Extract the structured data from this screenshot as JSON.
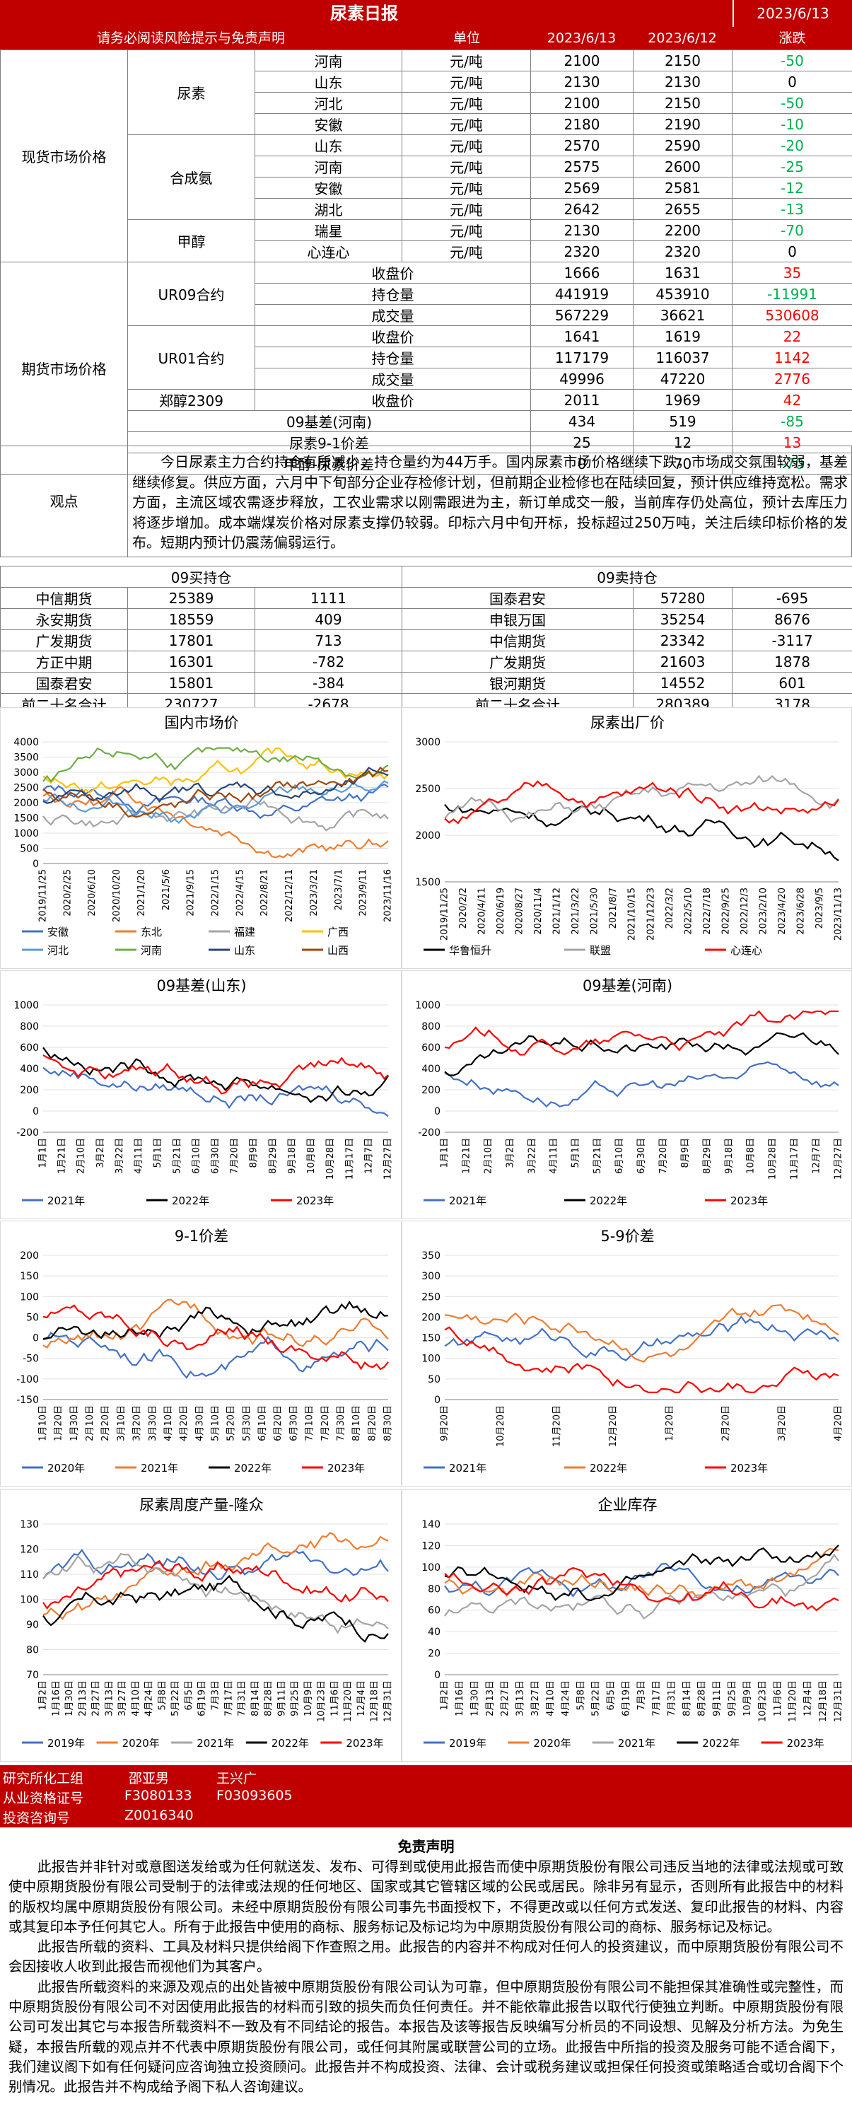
{
  "header": {
    "title": "尿素日报",
    "date": "2023/6/13"
  },
  "subheader": {
    "notice": "请务必阅读风险提示与免责声明",
    "unit": "单位",
    "col1": "2023/6/13",
    "col2": "2023/6/12",
    "col3": "涨跌"
  },
  "spot": {
    "section": "现货市场价格",
    "groups": [
      {
        "name": "尿素",
        "rows": [
          [
            "河南",
            "元/吨",
            "2100",
            "2150",
            "-50"
          ],
          [
            "山东",
            "元/吨",
            "2130",
            "2130",
            "0"
          ],
          [
            "河北",
            "元/吨",
            "2100",
            "2150",
            "-50"
          ],
          [
            "安徽",
            "元/吨",
            "2180",
            "2190",
            "-10"
          ]
        ]
      },
      {
        "name": "合成氨",
        "rows": [
          [
            "山东",
            "元/吨",
            "2570",
            "2590",
            "-20"
          ],
          [
            "河南",
            "元/吨",
            "2575",
            "2600",
            "-25"
          ],
          [
            "安徽",
            "元/吨",
            "2569",
            "2581",
            "-12"
          ],
          [
            "湖北",
            "元/吨",
            "2642",
            "2655",
            "-13"
          ]
        ]
      },
      {
        "name": "甲醇",
        "rows": [
          [
            "瑞星",
            "元/吨",
            "2130",
            "2200",
            "-70"
          ],
          [
            "心连心",
            "元/吨",
            "2320",
            "2320",
            "0"
          ]
        ]
      }
    ]
  },
  "futures": {
    "section": "期货市场价格",
    "groups": [
      {
        "name": "UR09合约",
        "rows": [
          [
            "收盘价",
            "1666",
            "1631",
            "35"
          ],
          [
            "持仓量",
            "441919",
            "453910",
            "-11991"
          ],
          [
            "成交量",
            "567229",
            "36621",
            "530608"
          ]
        ]
      },
      {
        "name": "UR01合约",
        "rows": [
          [
            "收盘价",
            "1641",
            "1619",
            "22"
          ],
          [
            "持仓量",
            "117179",
            "116037",
            "1142"
          ],
          [
            "成交量",
            "49996",
            "47220",
            "2776"
          ]
        ]
      },
      {
        "name": "郑醇2309",
        "rows": [
          [
            "收盘价",
            "2011",
            "1969",
            "42"
          ]
        ]
      }
    ],
    "basis": [
      [
        "09基差(河南)",
        "434",
        "519",
        "-85"
      ],
      [
        "尿素9-1价差",
        "25",
        "12",
        "13"
      ],
      [
        "甲醇-尿素价差",
        "0",
        "70",
        "-70"
      ]
    ]
  },
  "view": {
    "label": "观点",
    "text": "今日尿素主力合约持仓有所减少，持仓量约为44万手。国内尿素市场价格继续下跌，市场成交氛围较弱，基差继续修复。供应方面，六月中下旬部分企业存检修计划，但前期企业检修也在陆续回复，预计供应维持宽松。需求方面，主流区域农需逐步释放，工农业需求以刚需跟进为主，新订单成交一般，当前库存仍处高位，预计去库压力将逐步增加。成本端煤炭价格对尿素支撑仍较弱。印标六月中旬开标，投标超过250万吨，关注后续印标价格的发布。短期内预计仍震荡偏弱运行。"
  },
  "positions": {
    "buy_title": "09买持仓",
    "sell_title": "09卖持仓",
    "rows": [
      [
        "中信期货",
        "25389",
        "1111",
        "国泰君安",
        "57280",
        "-695"
      ],
      [
        "永安期货",
        "18559",
        "409",
        "申银万国",
        "35254",
        "8676"
      ],
      [
        "广发期货",
        "17801",
        "713",
        "中信期货",
        "23342",
        "-3117"
      ],
      [
        "方正中期",
        "16301",
        "-782",
        "广发期货",
        "21603",
        "1878"
      ],
      [
        "国泰君安",
        "15801",
        "-384",
        "银河期货",
        "14552",
        "601"
      ],
      [
        "前二十名合计",
        "230727",
        "-2678",
        "前二十名合计",
        "280389",
        "3178"
      ]
    ]
  },
  "charts": [
    {
      "title": "国内市场价",
      "type": "line",
      "ylim": [
        0,
        4000
      ],
      "yticks": [
        "0",
        "500",
        "1000",
        "1500",
        "2000",
        "2500",
        "3000",
        "3500",
        "4000"
      ],
      "xticks": [
        "2019/11/25",
        "2020/2/25",
        "2020/6/10",
        "2020/10/20",
        "2021/1/20",
        "2021/5/6",
        "2021/9/15",
        "2022/1/15",
        "2022/4/15",
        "2022/8/21",
        "2022/12/11",
        "2023/3/21",
        "2023/7/1",
        "2023/9/11",
        "2023/11/16"
      ],
      "legend": [
        "安徽",
        "东北",
        "福建",
        "广西",
        "河北",
        "河南",
        "山东",
        "山西"
      ],
      "colors": [
        "#4472c4",
        "#ed7d31",
        "#a5a5a5",
        "#ffc000",
        "#5b9bd5",
        "#70ad47",
        "#264478",
        "#9e480e"
      ]
    },
    {
      "title": "尿素出厂价",
      "type": "line",
      "ylim": [
        1500,
        3000
      ],
      "yticks": [
        "1500",
        "2000",
        "2500",
        "3000"
      ],
      "xticks": [
        "2019/11/25",
        "2020/2/2",
        "2020/4/11",
        "2020/6/19",
        "2020/8/27",
        "2020/11/4",
        "2021/1/12",
        "2021/3/22",
        "2021/5/30",
        "2021/8/7",
        "2021/10/15",
        "2021/12/23",
        "2022/3/2",
        "2022/5/10",
        "2022/7/18",
        "2022/9/25",
        "2022/12/3",
        "2023/2/10",
        "2023/4/20",
        "2023/6/28",
        "2023/9/5",
        "2023/11/13"
      ],
      "legend": [
        "华鲁恒升",
        "联盟",
        "心连心"
      ],
      "colors": [
        "#000000",
        "#a5a5a5",
        "#ff0000"
      ]
    },
    {
      "title": "09基差(山东)",
      "type": "line",
      "ylim": [
        -200,
        1000
      ],
      "yticks": [
        "-200",
        "0",
        "200",
        "400",
        "600",
        "800",
        "1000"
      ],
      "xticks": [
        "1月1日",
        "1月21日",
        "2月10日",
        "3月2日",
        "3月22日",
        "4月11日",
        "5月1日",
        "5月21日",
        "6月10日",
        "6月30日",
        "7月20日",
        "8月9日",
        "8月29日",
        "9月18日",
        "10月8日",
        "10月28日",
        "11月17日",
        "12月7日",
        "12月27日"
      ],
      "legend": [
        "2021年",
        "2022年",
        "2023年"
      ],
      "colors": [
        "#4472c4",
        "#000000",
        "#ff0000"
      ]
    },
    {
      "title": "09基差(河南)",
      "type": "line",
      "ylim": [
        -200,
        1000
      ],
      "yticks": [
        "-200",
        "0",
        "200",
        "400",
        "600",
        "800",
        "1000"
      ],
      "xticks": [
        "1月1日",
        "1月21日",
        "2月10日",
        "3月2日",
        "3月22日",
        "4月11日",
        "5月1日",
        "5月21日",
        "6月10日",
        "6月30日",
        "7月20日",
        "8月9日",
        "8月29日",
        "9月18日",
        "10月8日",
        "10月28日",
        "11月17日",
        "12月7日",
        "12月27日"
      ],
      "legend": [
        "2021年",
        "2022年",
        "2023年"
      ],
      "colors": [
        "#4472c4",
        "#000000",
        "#ff0000"
      ]
    },
    {
      "title": "9-1价差",
      "type": "line",
      "ylim": [
        -150,
        200
      ],
      "yticks": [
        "-150",
        "-100",
        "-50",
        "0",
        "50",
        "100",
        "150",
        "200"
      ],
      "xticks": [
        "1月10日",
        "1月20日",
        "1月30日",
        "2月10日",
        "2月20日",
        "3月10日",
        "3月20日",
        "3月30日",
        "4月10日",
        "4月20日",
        "4月30日",
        "5月10日",
        "5月20日",
        "5月30日",
        "6月10日",
        "6月20日",
        "6月30日",
        "7月10日",
        "7月20日",
        "7月30日",
        "8月10日",
        "8月20日",
        "8月30日"
      ],
      "legend": [
        "2020年",
        "2021年",
        "2022年",
        "2023年"
      ],
      "colors": [
        "#4472c4",
        "#ed7d31",
        "#000000",
        "#ff0000"
      ]
    },
    {
      "title": "5-9价差",
      "type": "line",
      "ylim": [
        0,
        350
      ],
      "yticks": [
        "0",
        "50",
        "100",
        "150",
        "200",
        "250",
        "300",
        "350"
      ],
      "xticks": [
        "9月20日",
        "10月20日",
        "11月20日",
        "12月20日",
        "1月20日",
        "2月20日",
        "3月20日",
        "4月20日"
      ],
      "legend": [
        "2021年",
        "2022年",
        "2023年"
      ],
      "colors": [
        "#4472c4",
        "#ed7d31",
        "#ff0000"
      ]
    },
    {
      "title": "尿素周度产量-隆众",
      "type": "line",
      "ylim": [
        70,
        130
      ],
      "yticks": [
        "70",
        "80",
        "90",
        "100",
        "110",
        "120",
        "130"
      ],
      "xticks": [
        "1月2日",
        "1月16日",
        "1月30日",
        "2月13日",
        "2月27日",
        "3月13日",
        "3月27日",
        "4月10日",
        "4月24日",
        "5月8日",
        "5月22日",
        "6月5日",
        "6月19日",
        "7月3日",
        "7月17日",
        "7月31日",
        "8月14日",
        "8月28日",
        "9月11日",
        "9月25日",
        "10月9日",
        "10月23日",
        "11月6日",
        "11月20日",
        "12月4日",
        "12月18日",
        "12月31日"
      ],
      "legend": [
        "2019年",
        "2020年",
        "2021年",
        "2022年",
        "2023年"
      ],
      "colors": [
        "#4472c4",
        "#ed7d31",
        "#a5a5a5",
        "#000000",
        "#ff0000"
      ]
    },
    {
      "title": "企业库存",
      "type": "line",
      "ylim": [
        0,
        140
      ],
      "yticks": [
        "0",
        "20",
        "40",
        "60",
        "80",
        "100",
        "120",
        "140"
      ],
      "xticks": [
        "1月2日",
        "1月16日",
        "1月30日",
        "2月13日",
        "2月27日",
        "3月13日",
        "3月27日",
        "4月10日",
        "4月24日",
        "5月8日",
        "5月22日",
        "6月5日",
        "6月19日",
        "7月3日",
        "7月17日",
        "7月31日",
        "8月14日",
        "8月28日",
        "9月11日",
        "9月25日",
        "10月9日",
        "10月23日",
        "11月6日",
        "11月20日",
        "12月4日",
        "12月18日",
        "12月31日"
      ],
      "legend": [
        "2019年",
        "2020年",
        "2021年",
        "2022年",
        "2023年"
      ],
      "colors": [
        "#4472c4",
        "#ed7d31",
        "#a5a5a5",
        "#000000",
        "#ff0000"
      ]
    }
  ],
  "footer": {
    "l1": "研究所化工组",
    "n1": "邵亚男",
    "n2": "王兴广",
    "l2": "从业资格证号",
    "c1": "F3080133",
    "c2": "F03093605",
    "l3": "投资咨询号",
    "c3": "Z0016340"
  },
  "disclaimer": {
    "title": "免责声明",
    "p1": "此报告并非针对或意图送发给或为任何就送发、发布、可得到或使用此报告而使中原期货股份有限公司违反当地的法律或法规或可致使中原期货股份有限公司受制于的法律或法规的任何地区、国家或其它管辖区域的公民或居民。除非另有显示，否则所有此报告中的材料的版权均属中原期货股份有限公司。未经中原期货股份有限公司事先书面授权下，不得更改或以任何方式发送、复印此报告的材料、内容或其复印本予任何其它人。所有于此报告中使用的商标、服务标记及标记均为中原期货股份有限公司的商标、服务标记及标记。",
    "p2": "此报告所载的资料、工具及材料只提供给阁下作查照之用。此报告的内容并不构成对任何人的投资建议，而中原期货股份有限公司不会因接收人收到此报告而视他们为其客户。",
    "p3": "此报告所载资料的来源及观点的出处皆被中原期货股份有限公司认为可靠，但中原期货股份有限公司不能担保其准确性或完整性，而中原期货股份有限公司不对因使用此报告的材料而引致的损失而负任何责任。并不能依靠此报告以取代行使独立判断。中原期货股份有限公司可发出其它与本报告所载资料不一致及有不同结论的报告。本报告及该等报告反映编写分析员的不同设想、见解及分析方法。为免生疑，本报告所载的观点并不代表中原期货股份有限公司，或任何其附属或联营公司的立场。此报告中所指的投资及服务可能不适合阁下，我们建议阁下如有任何疑问应咨询独立投资顾问。此报告并不构成投资、法律、会计或税务建议或担保任何投资或策略适合或切合阁下个别情况。此报告并不构成给予阁下私人咨询建议。"
  }
}
